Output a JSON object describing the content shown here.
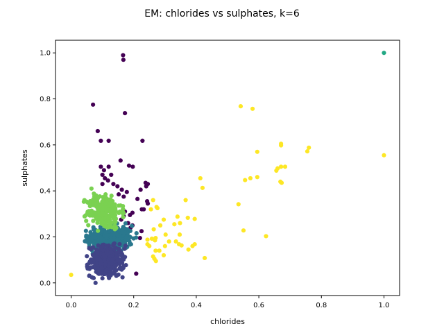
{
  "chart_data": {
    "type": "scatter",
    "title": "EM: chlorides vs sulphates, k=6",
    "xlabel": "chlorides",
    "ylabel": "sulphates",
    "xlim": [
      -0.05,
      1.05
    ],
    "ylim": [
      -0.055,
      1.055
    ],
    "xticks": [
      0.0,
      0.2,
      0.4,
      0.6,
      0.8,
      1.0
    ],
    "xtick_labels": [
      "0.0",
      "0.2",
      "0.4",
      "0.6",
      "0.8",
      "1.0"
    ],
    "yticks": [
      0.0,
      0.2,
      0.4,
      0.6,
      0.8,
      1.0
    ],
    "ytick_labels": [
      "0.0",
      "0.2",
      "0.4",
      "0.6",
      "0.8",
      "1.0"
    ],
    "grid": false,
    "legend": "none",
    "colormap": "viridis",
    "series": [
      {
        "cluster": 0,
        "color": "#440154",
        "points": [
          [
            0.166,
            0.99
          ],
          [
            0.167,
            0.97
          ],
          [
            0.07,
            0.775
          ],
          [
            0.172,
            0.738
          ],
          [
            0.085,
            0.66
          ],
          [
            0.095,
            0.618
          ],
          [
            0.12,
            0.618
          ],
          [
            0.228,
            0.618
          ],
          [
            0.158,
            0.532
          ],
          [
            0.185,
            0.51
          ],
          [
            0.197,
            0.505
          ],
          [
            0.095,
            0.505
          ],
          [
            0.105,
            0.49
          ],
          [
            0.12,
            0.505
          ],
          [
            0.1,
            0.47
          ],
          [
            0.128,
            0.47
          ],
          [
            0.108,
            0.455
          ],
          [
            0.118,
            0.445
          ],
          [
            0.1,
            0.43
          ],
          [
            0.135,
            0.43
          ],
          [
            0.148,
            0.42
          ],
          [
            0.162,
            0.405
          ],
          [
            0.178,
            0.395
          ],
          [
            0.152,
            0.385
          ],
          [
            0.168,
            0.375
          ],
          [
            0.238,
            0.435
          ],
          [
            0.24,
            0.42
          ],
          [
            0.245,
            0.43
          ],
          [
            0.222,
            0.405
          ],
          [
            0.212,
            0.365
          ],
          [
            0.243,
            0.355
          ],
          [
            0.245,
            0.345
          ],
          [
            0.232,
            0.32
          ],
          [
            0.226,
            0.32
          ],
          [
            0.196,
            0.305
          ],
          [
            0.188,
            0.295
          ],
          [
            0.172,
            0.31
          ],
          [
            0.168,
            0.29
          ],
          [
            0.162,
            0.31
          ],
          [
            0.16,
            0.275
          ],
          [
            0.182,
            0.26
          ],
          [
            0.19,
            0.24
          ],
          [
            0.196,
            0.25
          ],
          [
            0.225,
            0.225
          ],
          [
            0.22,
            0.195
          ],
          [
            0.208,
            0.04
          ]
        ]
      },
      {
        "cluster": 1,
        "color": "#414487",
        "region": {
          "x": [
            0.05,
            0.18
          ],
          "y": [
            0.015,
            0.175
          ]
        },
        "count": 340,
        "points": [
          [
            0.078,
            0.0
          ],
          [
            0.1,
            0.02
          ],
          [
            0.125,
            0.035
          ]
        ]
      },
      {
        "cluster": 2,
        "color": "#2A788E",
        "region": {
          "x": [
            0.04,
            0.21
          ],
          "y": [
            0.125,
            0.26
          ]
        },
        "count": 420,
        "points": []
      },
      {
        "cluster": 3,
        "color": "#22A884",
        "points": [
          [
            1.0,
            1.0
          ]
        ]
      },
      {
        "cluster": 4,
        "color": "#7AD151",
        "region": {
          "x": [
            0.04,
            0.17
          ],
          "y": [
            0.22,
            0.4
          ]
        },
        "count": 230,
        "points": [
          [
            0.065,
            0.41
          ],
          [
            0.08,
            0.38
          ],
          [
            0.11,
            0.385
          ]
        ]
      },
      {
        "cluster": 5,
        "color": "#FDE725",
        "points": [
          [
            0.0,
            0.035
          ],
          [
            0.542,
            0.768
          ],
          [
            0.58,
            0.757
          ],
          [
            0.671,
            0.605
          ],
          [
            0.671,
            0.598
          ],
          [
            0.595,
            0.57
          ],
          [
            0.76,
            0.588
          ],
          [
            0.755,
            0.572
          ],
          [
            1.0,
            0.555
          ],
          [
            0.413,
            0.455
          ],
          [
            0.573,
            0.455
          ],
          [
            0.556,
            0.447
          ],
          [
            0.595,
            0.46
          ],
          [
            0.66,
            0.498
          ],
          [
            0.656,
            0.488
          ],
          [
            0.671,
            0.505
          ],
          [
            0.684,
            0.505
          ],
          [
            0.669,
            0.44
          ],
          [
            0.673,
            0.435
          ],
          [
            0.42,
            0.413
          ],
          [
            0.366,
            0.36
          ],
          [
            0.262,
            0.36
          ],
          [
            0.373,
            0.283
          ],
          [
            0.34,
            0.288
          ],
          [
            0.348,
            0.26
          ],
          [
            0.395,
            0.278
          ],
          [
            0.33,
            0.255
          ],
          [
            0.273,
            0.33
          ],
          [
            0.276,
            0.325
          ],
          [
            0.285,
            0.25
          ],
          [
            0.296,
            0.275
          ],
          [
            0.264,
            0.233
          ],
          [
            0.255,
            0.32
          ],
          [
            0.535,
            0.342
          ],
          [
            0.551,
            0.228
          ],
          [
            0.623,
            0.203
          ],
          [
            0.258,
            0.192
          ],
          [
            0.268,
            0.185
          ],
          [
            0.244,
            0.188
          ],
          [
            0.244,
            0.168
          ],
          [
            0.25,
            0.16
          ],
          [
            0.3,
            0.16
          ],
          [
            0.313,
            0.18
          ],
          [
            0.335,
            0.18
          ],
          [
            0.345,
            0.168
          ],
          [
            0.353,
            0.163
          ],
          [
            0.375,
            0.145
          ],
          [
            0.388,
            0.16
          ],
          [
            0.395,
            0.168
          ],
          [
            0.27,
            0.14
          ],
          [
            0.262,
            0.115
          ],
          [
            0.266,
            0.105
          ],
          [
            0.271,
            0.095
          ],
          [
            0.282,
            0.14
          ],
          [
            0.296,
            0.12
          ],
          [
            0.427,
            0.108
          ],
          [
            0.347,
            0.21
          ],
          [
            0.302,
            0.21
          ],
          [
            0.27,
            0.195
          ]
        ]
      }
    ]
  }
}
